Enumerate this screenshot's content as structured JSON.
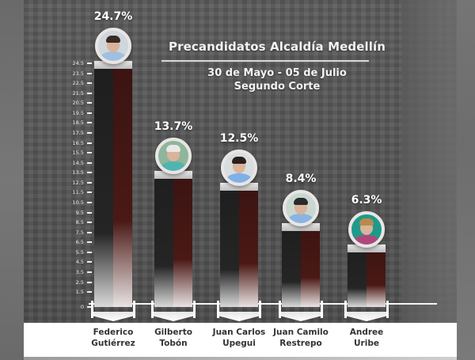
{
  "chart_data": {
    "type": "bar",
    "title": "Precandidatos Alcaldía Medellín",
    "subtitle": [
      "30 de Mayo - 05 de Julio",
      "Segundo Corte"
    ],
    "categories": [
      "Federico Gutiérrez",
      "Gilberto Tobón",
      "Juan Carlos Upegui",
      "Juan Camilo Restrepo",
      "Andree Uribe"
    ],
    "values": [
      24.7,
      13.7,
      12.5,
      8.4,
      6.3
    ],
    "value_labels": [
      "24.7%",
      "13.7%",
      "12.5%",
      "8.4%",
      "6.3%"
    ],
    "xlabel": "",
    "ylabel": "",
    "ylim": [
      0,
      24.5
    ],
    "yticks": [
      "0",
      "1.5",
      "2.5",
      "3.5",
      "4.5",
      "5.5",
      "6.5",
      "7.5",
      "8.5",
      "9.5",
      "10.5",
      "11.5",
      "12.5",
      "13.5",
      "14.5",
      "15.5",
      "16.5",
      "17.5",
      "18.5",
      "19.5",
      "20.5",
      "21.5",
      "22.5",
      "23.5",
      "24.5"
    ],
    "grid": false,
    "legend": null
  },
  "header": {
    "title": "Precandidatos Alcaldía Medellín",
    "subtitle_line1": "30 de Mayo - 05 de Julio",
    "subtitle_line2": "Segundo Corte"
  },
  "candidates": [
    {
      "name_line1": "Federico",
      "name_line2": "Gutiérrez",
      "pct": "24.7%",
      "value": 24.7,
      "photo": "avatar-federico-gutierrez"
    },
    {
      "name_line1": "Gilberto",
      "name_line2": "Tobón",
      "pct": "13.7%",
      "value": 13.7,
      "photo": "avatar-gilberto-tobon"
    },
    {
      "name_line1": "Juan Carlos",
      "name_line2": "Upegui",
      "pct": "12.5%",
      "value": 12.5,
      "photo": "avatar-juan-carlos-upegui"
    },
    {
      "name_line1": "Juan Camilo",
      "name_line2": "Restrepo",
      "pct": "8.4%",
      "value": 8.4,
      "photo": "avatar-juan-camilo-restrepo"
    },
    {
      "name_line1": "Andree",
      "name_line2": "Uribe",
      "pct": "6.3%",
      "value": 6.3,
      "photo": "avatar-andree-uribe"
    }
  ],
  "colors": {
    "bar_left": "#1e1e1e",
    "bar_right": "#4a1915",
    "text_light": "#ffffff",
    "label_text": "#333333",
    "label_band": "#ffffff"
  }
}
